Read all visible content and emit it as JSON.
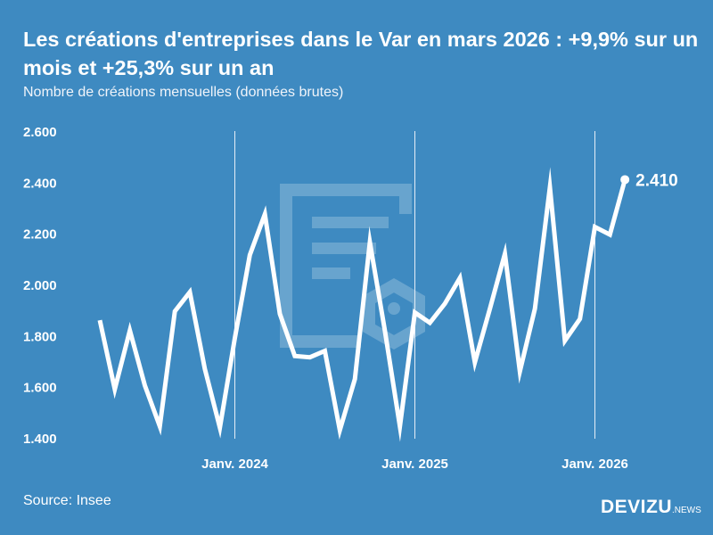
{
  "title": "Les créations d'entreprises dans le Var en mars 2026 : +9,9% sur un mois et +25,3% sur un an",
  "subtitle": "Nombre de créations mensuelles (données brutes)",
  "source": "Source: Insee",
  "logo": {
    "main": "DEVIZU",
    "suffix": ".NEWS"
  },
  "colors": {
    "background": "#3e8ac1",
    "line": "#ffffff"
  },
  "chart_data": {
    "type": "line",
    "title": "Les créations d'entreprises dans le Var en mars 2026 : +9,9% sur un mois et +25,3% sur un an",
    "subtitle": "Nombre de créations mensuelles (données brutes)",
    "x": [
      "2023-04",
      "2023-05",
      "2023-06",
      "2023-07",
      "2023-08",
      "2023-09",
      "2023-10",
      "2023-11",
      "2023-12",
      "2024-01",
      "2024-02",
      "2024-03",
      "2024-04",
      "2024-05",
      "2024-06",
      "2024-07",
      "2024-08",
      "2024-09",
      "2024-10",
      "2024-11",
      "2024-12",
      "2025-01",
      "2025-02",
      "2025-03",
      "2025-04",
      "2025-05",
      "2025-06",
      "2025-07",
      "2025-08",
      "2025-09",
      "2025-10",
      "2025-11",
      "2025-12",
      "2026-01",
      "2026-02",
      "2026-03"
    ],
    "values": [
      1860,
      1590,
      1820,
      1605,
      1445,
      1895,
      1970,
      1670,
      1440,
      1790,
      2115,
      2275,
      1885,
      1720,
      1715,
      1740,
      1430,
      1630,
      2165,
      1820,
      1445,
      1890,
      1850,
      1925,
      2025,
      1695,
      1905,
      2120,
      1660,
      1905,
      2380,
      1780,
      1865,
      2225,
      2195,
      2410
    ],
    "ylim": [
      1400,
      2600
    ],
    "yticks": [
      "1.400",
      "1.600",
      "1.800",
      "2.000",
      "2.200",
      "2.400",
      "2.600"
    ],
    "ytick_values": [
      1400,
      1600,
      1800,
      2000,
      2200,
      2400,
      2600
    ],
    "xticks": [
      "Janv. 2024",
      "Janv. 2025",
      "Janv. 2026"
    ],
    "xtick_values": [
      "2024-01",
      "2025-01",
      "2026-01"
    ],
    "last_label": "2.410",
    "grid": "vertical lines at January"
  }
}
